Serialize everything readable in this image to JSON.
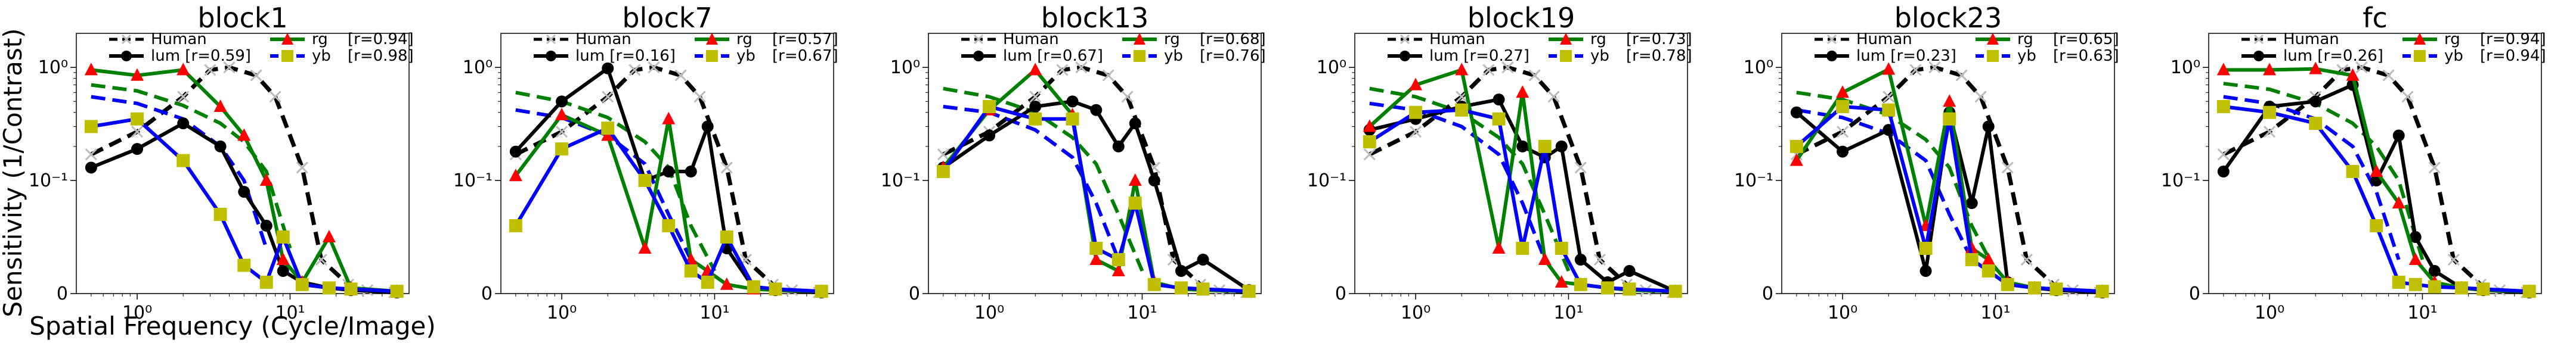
{
  "figure": {
    "ylabel": "Sensitivity (1/Contrast)",
    "xlabel": "Spatial Frequency (Cycle/Image)"
  },
  "chart_data": [
    {
      "type": "line",
      "title": "block1",
      "xscale": "log",
      "yscale": "symlog",
      "xlim": [
        0.4,
        60
      ],
      "ylim": [
        0,
        2
      ],
      "xticks": [
        "10⁰",
        "10¹"
      ],
      "yticks": [
        "0",
        "10⁻¹",
        "10⁰"
      ],
      "legend": {
        "human": "Human",
        "lum": "lum [r=0.59]",
        "rg": "rg",
        "rg_r": "[r=0.94]",
        "yb": "yb",
        "yb_r": "[r=0.98]"
      },
      "human": {
        "x": [
          0.5,
          1,
          2,
          3,
          4,
          6,
          8,
          12,
          16,
          24,
          32,
          48
        ],
        "y": [
          0.17,
          0.27,
          0.55,
          0.95,
          1.0,
          0.85,
          0.55,
          0.13,
          0.03,
          0.008,
          0.003,
          0.001
        ]
      },
      "series": [
        {
          "name": "lum",
          "x": [
            0.5,
            1,
            2,
            3.5,
            5,
            7,
            9,
            12,
            18,
            25,
            50
          ],
          "y": [
            0.13,
            0.19,
            0.32,
            0.2,
            0.09,
            0.06,
            0.02,
            0.01,
            0.005,
            0.003,
            0.001
          ]
        },
        {
          "name": "rg",
          "x": [
            0.5,
            1,
            2,
            3.5,
            5,
            7,
            9,
            12,
            18,
            25,
            50
          ],
          "y": [
            0.95,
            0.85,
            0.95,
            0.45,
            0.25,
            0.1,
            0.03,
            0.01,
            0.05,
            0.005,
            0.002
          ]
        },
        {
          "name": "yb",
          "x": [
            0.5,
            1,
            2,
            3.5,
            5,
            7,
            9,
            12,
            18,
            25,
            50
          ],
          "y": [
            0.3,
            0.35,
            0.15,
            0.07,
            0.025,
            0.01,
            0.05,
            0.008,
            0.005,
            0.004,
            0.002
          ]
        }
      ],
      "fits": [
        {
          "name": "rg",
          "x": [
            0.5,
            1,
            2,
            3.5,
            5,
            7,
            10
          ],
          "y": [
            0.7,
            0.62,
            0.46,
            0.32,
            0.22,
            0.12,
            0.04
          ]
        },
        {
          "name": "yb",
          "x": [
            0.5,
            1,
            2,
            3.5,
            5,
            7
          ],
          "y": [
            0.55,
            0.48,
            0.35,
            0.2,
            0.1,
            0.04
          ]
        }
      ]
    },
    {
      "type": "line",
      "title": "block7",
      "xscale": "log",
      "yscale": "symlog",
      "xlim": [
        0.4,
        60
      ],
      "ylim": [
        0,
        2
      ],
      "xticks": [
        "10⁰",
        "10¹"
      ],
      "yticks": [
        "0",
        "10⁻¹",
        "10⁰"
      ],
      "legend": {
        "human": "Human",
        "lum": "lum [r=0.16]",
        "rg": "rg",
        "rg_r": "[r=0.57]",
        "yb": "yb",
        "yb_r": "[r=0.67]"
      },
      "human": {
        "x": [
          0.5,
          1,
          2,
          3,
          4,
          6,
          8,
          12,
          16,
          24,
          32,
          48
        ],
        "y": [
          0.17,
          0.27,
          0.55,
          0.95,
          1.0,
          0.85,
          0.55,
          0.13,
          0.03,
          0.008,
          0.003,
          0.001
        ]
      },
      "series": [
        {
          "name": "lum",
          "x": [
            0.5,
            1,
            2,
            3.5,
            5,
            7,
            9,
            12,
            18,
            25,
            50
          ],
          "y": [
            0.18,
            0.5,
            0.98,
            0.1,
            0.12,
            0.12,
            0.3,
            0.04,
            0.005,
            0.003,
            0.001
          ]
        },
        {
          "name": "rg",
          "x": [
            0.5,
            1,
            2,
            3.5,
            5,
            7,
            9,
            12,
            18,
            25,
            50
          ],
          "y": [
            0.11,
            0.38,
            0.25,
            0.04,
            0.35,
            0.03,
            0.02,
            0.008,
            0.004,
            0.003,
            0.002
          ]
        },
        {
          "name": "yb",
          "x": [
            0.5,
            1,
            2,
            3.5,
            5,
            7,
            9,
            12,
            18,
            25,
            50
          ],
          "y": [
            0.06,
            0.19,
            0.29,
            0.1,
            0.06,
            0.02,
            0.01,
            0.05,
            0.006,
            0.004,
            0.002
          ]
        }
      ],
      "fits": [
        {
          "name": "rg",
          "x": [
            0.5,
            1,
            2,
            3.5,
            5,
            7,
            10
          ],
          "y": [
            0.6,
            0.5,
            0.36,
            0.22,
            0.13,
            0.06,
            0.02
          ]
        },
        {
          "name": "yb",
          "x": [
            0.5,
            1,
            2,
            3.5,
            5,
            7
          ],
          "y": [
            0.42,
            0.36,
            0.25,
            0.14,
            0.07,
            0.03
          ]
        }
      ]
    },
    {
      "type": "line",
      "title": "block13",
      "xscale": "log",
      "yscale": "symlog",
      "xlim": [
        0.4,
        60
      ],
      "ylim": [
        0,
        2
      ],
      "xticks": [
        "10⁰",
        "10¹"
      ],
      "yticks": [
        "0",
        "10⁻¹",
        "10⁰"
      ],
      "legend": {
        "human": "Human",
        "lum": "lum [r=0.67]",
        "rg": "rg",
        "rg_r": "[r=0.68]",
        "yb": "yb",
        "yb_r": "[r=0.76]"
      },
      "human": {
        "x": [
          0.5,
          1,
          2,
          3,
          4,
          6,
          8,
          12,
          16,
          24,
          32,
          48
        ],
        "y": [
          0.17,
          0.27,
          0.55,
          0.95,
          1.0,
          0.85,
          0.55,
          0.13,
          0.03,
          0.008,
          0.003,
          0.001
        ]
      },
      "series": [
        {
          "name": "lum",
          "x": [
            0.5,
            1,
            2,
            3.5,
            5,
            7,
            9,
            12,
            18,
            25,
            50
          ],
          "y": [
            0.13,
            0.25,
            0.45,
            0.5,
            0.42,
            0.2,
            0.32,
            0.1,
            0.02,
            0.03,
            0.003
          ]
        },
        {
          "name": "rg",
          "x": [
            0.5,
            1,
            2,
            3.5,
            5,
            7,
            9,
            12,
            18,
            25,
            50
          ],
          "y": [
            0.13,
            0.42,
            0.95,
            0.38,
            0.03,
            0.02,
            0.1,
            0.01,
            0.004,
            0.003,
            0.002
          ]
        },
        {
          "name": "yb",
          "x": [
            0.5,
            1,
            2,
            3.5,
            5,
            7,
            9,
            12,
            18,
            25,
            50
          ],
          "y": [
            0.12,
            0.45,
            0.35,
            0.35,
            0.04,
            0.03,
            0.08,
            0.008,
            0.005,
            0.004,
            0.002
          ]
        }
      ],
      "fits": [
        {
          "name": "rg",
          "x": [
            0.5,
            1,
            2,
            3.5,
            5,
            7,
            10
          ],
          "y": [
            0.65,
            0.55,
            0.4,
            0.24,
            0.14,
            0.07,
            0.02
          ]
        },
        {
          "name": "yb",
          "x": [
            0.5,
            1,
            2,
            3.5,
            5,
            7
          ],
          "y": [
            0.45,
            0.4,
            0.28,
            0.16,
            0.08,
            0.03
          ]
        }
      ]
    },
    {
      "type": "line",
      "title": "block19",
      "xscale": "log",
      "yscale": "symlog",
      "xlim": [
        0.4,
        60
      ],
      "ylim": [
        0,
        2
      ],
      "xticks": [
        "10⁰",
        "10¹"
      ],
      "yticks": [
        "0",
        "10⁻¹",
        "10⁰"
      ],
      "legend": {
        "human": "Human",
        "lum": "lum [r=0.27]",
        "rg": "rg",
        "rg_r": "[r=0.73]",
        "yb": "yb",
        "yb_r": "[r=0.78]"
      },
      "human": {
        "x": [
          0.5,
          1,
          2,
          3,
          4,
          6,
          8,
          12,
          16,
          24,
          32,
          48
        ],
        "y": [
          0.17,
          0.27,
          0.55,
          0.95,
          1.0,
          0.85,
          0.55,
          0.13,
          0.03,
          0.008,
          0.003,
          0.001
        ]
      },
      "series": [
        {
          "name": "lum",
          "x": [
            0.5,
            1,
            2,
            3.5,
            5,
            7,
            9,
            12,
            18,
            25,
            50
          ],
          "y": [
            0.28,
            0.35,
            0.45,
            0.52,
            0.2,
            0.16,
            0.2,
            0.03,
            0.01,
            0.02,
            0.002
          ]
        },
        {
          "name": "rg",
          "x": [
            0.5,
            1,
            2,
            3.5,
            5,
            7,
            9,
            12,
            18,
            25,
            50
          ],
          "y": [
            0.3,
            0.7,
            0.95,
            0.04,
            0.6,
            0.03,
            0.01,
            0.008,
            0.005,
            0.003,
            0.002
          ]
        },
        {
          "name": "yb",
          "x": [
            0.5,
            1,
            2,
            3.5,
            5,
            7,
            9,
            12,
            18,
            25,
            50
          ],
          "y": [
            0.22,
            0.4,
            0.42,
            0.35,
            0.04,
            0.2,
            0.04,
            0.008,
            0.005,
            0.004,
            0.002
          ]
        }
      ],
      "fits": [
        {
          "name": "rg",
          "x": [
            0.5,
            1,
            2,
            3.5,
            5,
            7,
            10
          ],
          "y": [
            0.65,
            0.55,
            0.4,
            0.24,
            0.14,
            0.07,
            0.02
          ]
        },
        {
          "name": "yb",
          "x": [
            0.5,
            1,
            2,
            3.5,
            5,
            7
          ],
          "y": [
            0.48,
            0.42,
            0.3,
            0.17,
            0.08,
            0.03
          ]
        }
      ]
    },
    {
      "type": "line",
      "title": "block23",
      "xscale": "log",
      "yscale": "symlog",
      "xlim": [
        0.4,
        60
      ],
      "ylim": [
        0,
        2
      ],
      "xticks": [
        "10⁰",
        "10¹"
      ],
      "yticks": [
        "0",
        "10⁻¹",
        "10⁰"
      ],
      "legend": {
        "human": "Human",
        "lum": "lum [r=0.23]",
        "rg": "rg",
        "rg_r": "[r=0.65]",
        "yb": "yb",
        "yb_r": "[r=0.63]"
      },
      "human": {
        "x": [
          0.5,
          1,
          2,
          3,
          4,
          6,
          8,
          12,
          16,
          24,
          32,
          48
        ],
        "y": [
          0.17,
          0.27,
          0.55,
          0.95,
          1.0,
          0.85,
          0.55,
          0.13,
          0.03,
          0.008,
          0.003,
          0.001
        ]
      },
      "series": [
        {
          "name": "lum",
          "x": [
            0.5,
            1,
            2,
            3.5,
            5,
            7,
            9,
            12,
            18,
            25,
            50
          ],
          "y": [
            0.4,
            0.18,
            0.28,
            0.02,
            0.4,
            0.08,
            0.3,
            0.01,
            0.005,
            0.003,
            0.001
          ]
        },
        {
          "name": "rg",
          "x": [
            0.5,
            1,
            2,
            3.5,
            5,
            7,
            9,
            12,
            18,
            25,
            50
          ],
          "y": [
            0.15,
            0.6,
            0.96,
            0.06,
            0.5,
            0.04,
            0.03,
            0.01,
            0.005,
            0.004,
            0.002
          ]
        },
        {
          "name": "yb",
          "x": [
            0.5,
            1,
            2,
            3.5,
            5,
            7,
            9,
            12,
            18,
            25,
            50
          ],
          "y": [
            0.2,
            0.45,
            0.42,
            0.04,
            0.35,
            0.03,
            0.02,
            0.008,
            0.005,
            0.004,
            0.002
          ]
        }
      ],
      "fits": [
        {
          "name": "rg",
          "x": [
            0.5,
            1,
            2,
            3.5,
            5,
            7,
            10
          ],
          "y": [
            0.6,
            0.52,
            0.38,
            0.23,
            0.13,
            0.06,
            0.02
          ]
        },
        {
          "name": "yb",
          "x": [
            0.5,
            1,
            2,
            3.5,
            5,
            7
          ],
          "y": [
            0.42,
            0.36,
            0.26,
            0.15,
            0.07,
            0.03
          ]
        }
      ]
    },
    {
      "type": "line",
      "title": "fc",
      "xscale": "log",
      "yscale": "symlog",
      "xlim": [
        0.4,
        60
      ],
      "ylim": [
        0,
        2
      ],
      "xticks": [
        "10⁰",
        "10¹"
      ],
      "yticks": [
        "0",
        "10⁻¹",
        "10⁰"
      ],
      "legend": {
        "human": "Human",
        "lum": "lum [r=0.26]",
        "rg": "rg",
        "rg_r": "[r=0.94]",
        "yb": "yb",
        "yb_r": "[r=0.94]"
      },
      "human": {
        "x": [
          0.5,
          1,
          2,
          3,
          4,
          6,
          8,
          12,
          16,
          24,
          32,
          48
        ],
        "y": [
          0.17,
          0.27,
          0.55,
          0.95,
          1.0,
          0.85,
          0.55,
          0.13,
          0.03,
          0.008,
          0.003,
          0.001
        ]
      },
      "series": [
        {
          "name": "lum",
          "x": [
            0.5,
            1,
            2,
            3.5,
            5,
            7,
            9,
            12,
            18,
            25,
            50
          ],
          "y": [
            0.12,
            0.45,
            0.5,
            0.7,
            0.1,
            0.25,
            0.05,
            0.02,
            0.005,
            0.003,
            0.001
          ]
        },
        {
          "name": "rg",
          "x": [
            0.5,
            1,
            2,
            3.5,
            5,
            7,
            9,
            12,
            18,
            25,
            50
          ],
          "y": [
            0.95,
            0.95,
            0.97,
            0.85,
            0.12,
            0.08,
            0.03,
            0.01,
            0.005,
            0.003,
            0.002
          ]
        },
        {
          "name": "yb",
          "x": [
            0.5,
            1,
            2,
            3.5,
            5,
            7,
            9,
            12,
            18,
            25,
            50
          ],
          "y": [
            0.45,
            0.4,
            0.32,
            0.12,
            0.06,
            0.01,
            0.008,
            0.006,
            0.005,
            0.004,
            0.002
          ]
        }
      ],
      "fits": [
        {
          "name": "rg",
          "x": [
            0.5,
            1,
            2,
            3.5,
            5,
            7,
            10
          ],
          "y": [
            0.72,
            0.64,
            0.48,
            0.32,
            0.2,
            0.1,
            0.03
          ]
        },
        {
          "name": "yb",
          "x": [
            0.5,
            1,
            2,
            3.5,
            5,
            7
          ],
          "y": [
            0.55,
            0.48,
            0.35,
            0.2,
            0.09,
            0.03
          ]
        }
      ]
    }
  ],
  "colors": {
    "human": "#000000",
    "lum": "#000000",
    "rg": "#008000",
    "yb": "#0000ff",
    "rg_marker": "#ff0000",
    "yb_marker": "#bfbf00",
    "human_marker": "#bbbbbb"
  }
}
